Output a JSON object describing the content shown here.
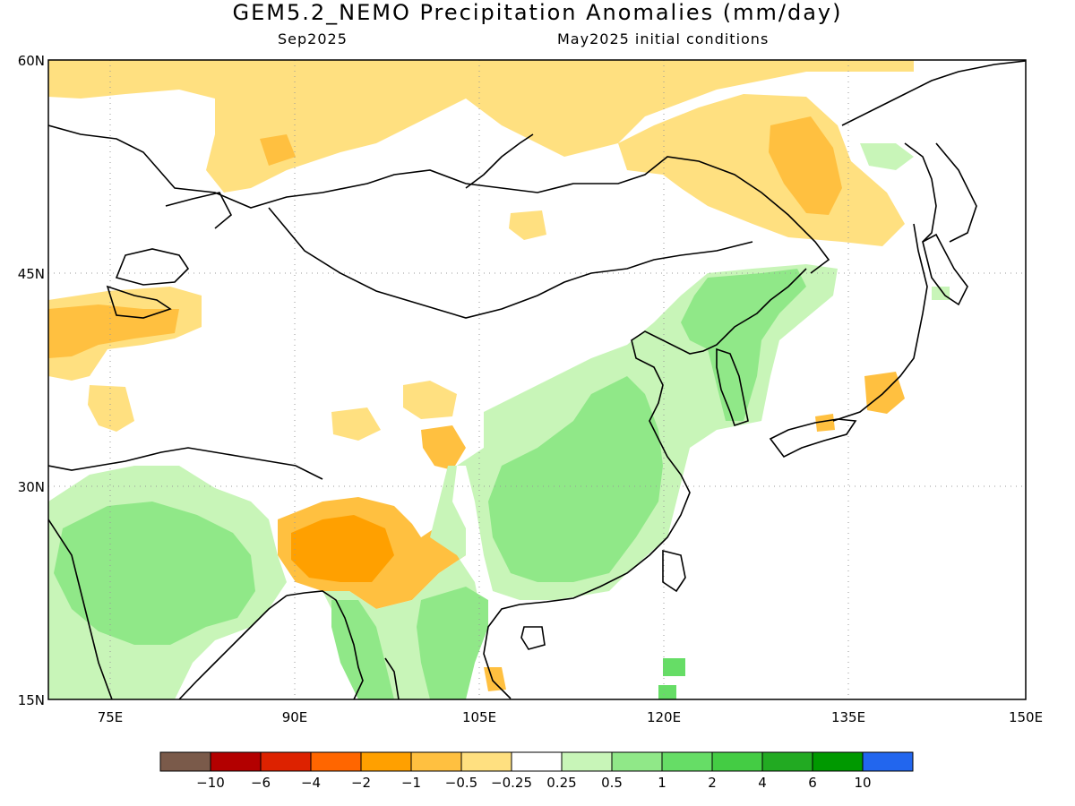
{
  "title": "GEM5.2_NEMO Precipitation Anomalies (mm/day)",
  "subtitle_left": "Sep2025",
  "subtitle_right": "May2025 initial conditions",
  "lat_labels": [
    "60N",
    "45N",
    "30N",
    "15N"
  ],
  "lon_labels": [
    "75E",
    "90E",
    "105E",
    "120E",
    "135E",
    "150E"
  ],
  "colorbar": {
    "colors": [
      "#7a5a4a",
      "#b30000",
      "#dd2200",
      "#ff6600",
      "#ffa000",
      "#ffc040",
      "#ffe080",
      "#ffffff",
      "#c8f5b8",
      "#90e888",
      "#66dd66",
      "#44cc44",
      "#22aa22",
      "#009900",
      "#2266ee"
    ],
    "labels": [
      "−10",
      "−6",
      "−4",
      "−2",
      "−1",
      "−0.5",
      "−0.25",
      "0.25",
      "0.5",
      "1",
      "2",
      "4",
      "6",
      "10"
    ]
  }
}
